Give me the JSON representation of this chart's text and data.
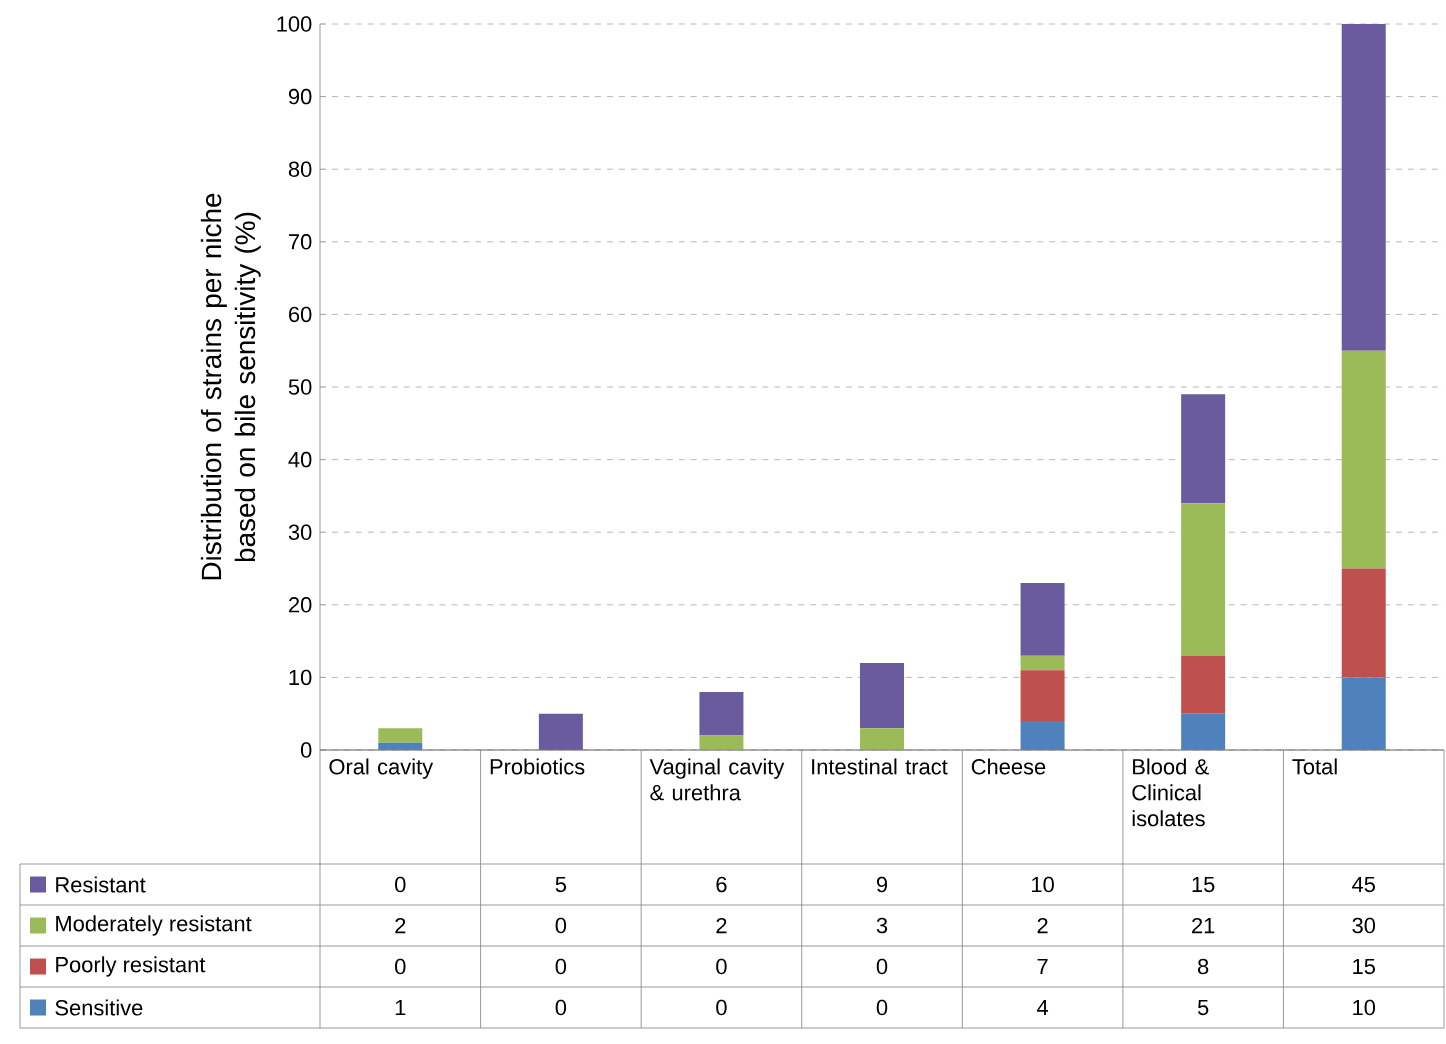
{
  "chart_data": {
    "type": "bar",
    "stacked": true,
    "ylabel": "Distribution of strains per niche based on bile sensitivity (%)",
    "categories": [
      "Oral cavity",
      "Probiotics",
      "Vaginal cavity & urethra",
      "Intestinal tract",
      "Cheese",
      "Blood & Clinical isolates",
      "Total"
    ],
    "series": [
      {
        "name": "Sensitive",
        "color": "#4f81bd",
        "values": [
          1,
          0,
          0,
          0,
          4,
          5,
          10
        ]
      },
      {
        "name": "Poorly resistant",
        "color": "#c0504d",
        "values": [
          0,
          0,
          0,
          0,
          7,
          8,
          15
        ]
      },
      {
        "name": "Moderately resistant",
        "color": "#9bbb59",
        "values": [
          2,
          0,
          2,
          3,
          2,
          21,
          30
        ]
      },
      {
        "name": "Resistant",
        "color": "#6a5a9e",
        "values": [
          0,
          5,
          6,
          9,
          10,
          15,
          45
        ]
      }
    ],
    "ylim": [
      0,
      100
    ],
    "yticks": [
      0,
      10,
      20,
      30,
      40,
      50,
      60,
      70,
      80,
      90,
      100
    ],
    "grid": "y",
    "legend": "bottom",
    "data_labels": true
  }
}
